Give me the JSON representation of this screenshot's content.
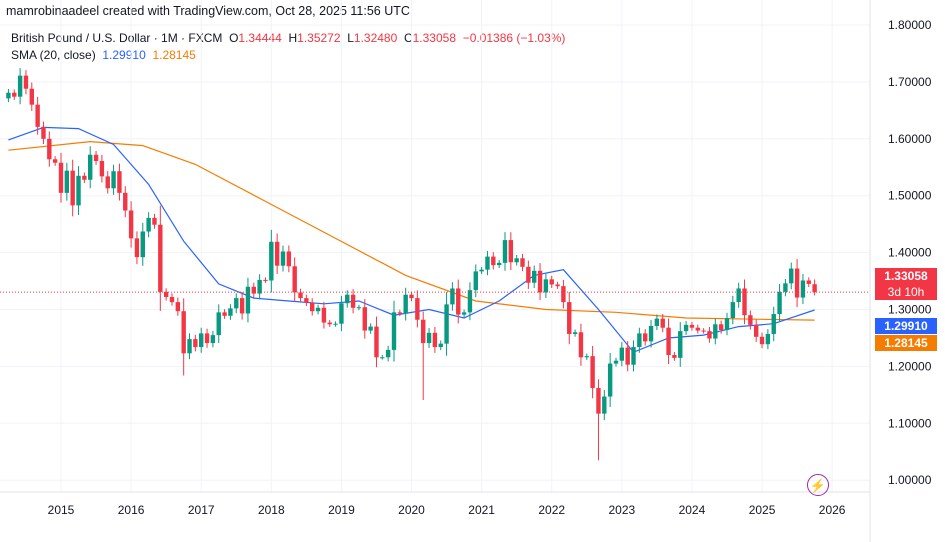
{
  "header": {
    "credit": "mamrobinaadeel created with TradingView.com, Oct 28, 2025 11:56 UTC"
  },
  "legend": {
    "symbol": "British Pound / U.S. Dollar · 1M · FXCM",
    "o_label": "O",
    "o": "1.34444",
    "h_label": "H",
    "h": "1.35272",
    "l_label": "L",
    "l": "1.32480",
    "c_label": "C",
    "c": "1.33058",
    "change": "−0.01386 (−1.03%)",
    "sma_label": "SMA (20, close)",
    "sma1": "1.29910",
    "sma2": "1.28145"
  },
  "price_tags": {
    "last": "1.33058",
    "countdown": "3d 10h",
    "sma1": "1.29910",
    "sma2": "1.28145"
  },
  "icons": {
    "tv": "tradingview-lightning-icon"
  },
  "colors": {
    "up": "#089981",
    "down": "#f23645",
    "sma1": "#2962ff",
    "sma2": "#f57c00",
    "grid": "#f0f3fa"
  },
  "chart_data": {
    "type": "candlestick",
    "interval": "1M",
    "first_month": "2014-04",
    "first_open": 1.671,
    "closes": [
      1.681,
      1.674,
      1.711,
      1.688,
      1.66,
      1.621,
      1.6,
      1.564,
      1.558,
      1.505,
      1.544,
      1.483,
      1.535,
      1.528,
      1.572,
      1.561,
      1.534,
      1.513,
      1.543,
      1.505,
      1.474,
      1.425,
      1.392,
      1.437,
      1.461,
      1.449,
      1.331,
      1.322,
      1.313,
      1.297,
      1.223,
      1.248,
      1.234,
      1.258,
      1.241,
      1.255,
      1.295,
      1.289,
      1.302,
      1.32,
      1.293,
      1.34,
      1.328,
      1.352,
      1.351,
      1.419,
      1.377,
      1.402,
      1.376,
      1.33,
      1.32,
      1.312,
      1.297,
      1.303,
      1.277,
      1.274,
      1.275,
      1.311,
      1.326,
      1.303,
      1.304,
      1.263,
      1.27,
      1.216,
      1.216,
      1.229,
      1.295,
      1.293,
      1.326,
      1.32,
      1.282,
      1.241,
      1.259,
      1.234,
      1.24,
      1.309,
      1.337,
      1.291,
      1.295,
      1.334,
      1.367,
      1.37,
      1.393,
      1.378,
      1.382,
      1.422,
      1.383,
      1.39,
      1.375,
      1.347,
      1.368,
      1.33,
      1.353,
      1.344,
      1.341,
      1.313,
      1.257,
      1.26,
      1.216,
      1.218,
      1.162,
      1.117,
      1.147,
      1.205,
      1.21,
      1.233,
      1.203,
      1.234,
      1.258,
      1.244,
      1.271,
      1.284,
      1.268,
      1.22,
      1.215,
      1.262,
      1.273,
      1.268,
      1.263,
      1.262,
      1.249,
      1.274,
      1.264,
      1.285,
      1.313,
      1.337,
      1.29,
      1.273,
      1.252,
      1.239,
      1.257,
      1.292,
      1.331,
      1.346,
      1.372,
      1.321,
      1.351,
      1.345,
      1.33058
    ],
    "wick_extremes": [
      {
        "month": "2016-10",
        "low": 1.184
      },
      {
        "month": "2020-03",
        "low": 1.141
      },
      {
        "month": "2022-09",
        "low": 1.035
      },
      {
        "month": "2025-10",
        "open": 1.34444,
        "high": 1.35272,
        "low": 1.3248
      }
    ],
    "sma1_line": [
      [
        "2014-04",
        1.598
      ],
      [
        "2014-10",
        1.62
      ],
      [
        "2015-04",
        1.618
      ],
      [
        "2015-10",
        1.59
      ],
      [
        "2016-04",
        1.52
      ],
      [
        "2016-10",
        1.42
      ],
      [
        "2017-04",
        1.345
      ],
      [
        "2017-10",
        1.32
      ],
      [
        "2018-04",
        1.315
      ],
      [
        "2018-10",
        1.31
      ],
      [
        "2019-04",
        1.315
      ],
      [
        "2019-10",
        1.29
      ],
      [
        "2020-04",
        1.3
      ],
      [
        "2020-10",
        1.285
      ],
      [
        "2021-04",
        1.315
      ],
      [
        "2021-10",
        1.36
      ],
      [
        "2022-03",
        1.37
      ],
      [
        "2022-09",
        1.3
      ],
      [
        "2023-03",
        1.225
      ],
      [
        "2023-09",
        1.25
      ],
      [
        "2024-03",
        1.255
      ],
      [
        "2024-09",
        1.27
      ],
      [
        "2025-03",
        1.275
      ],
      [
        "2025-10",
        1.2991
      ]
    ],
    "sma2_line": [
      [
        "2014-04",
        1.58
      ],
      [
        "2015-06",
        1.595
      ],
      [
        "2016-03",
        1.588
      ],
      [
        "2016-12",
        1.555
      ],
      [
        "2017-12",
        1.49
      ],
      [
        "2018-12",
        1.425
      ],
      [
        "2019-12",
        1.36
      ],
      [
        "2020-12",
        1.315
      ],
      [
        "2021-12",
        1.3
      ],
      [
        "2022-12",
        1.295
      ],
      [
        "2023-12",
        1.285
      ],
      [
        "2024-12",
        1.283
      ],
      [
        "2025-10",
        1.28145
      ]
    ],
    "x_ticks": [
      "2015",
      "2016",
      "2017",
      "2018",
      "2019",
      "2020",
      "2021",
      "2022",
      "2023",
      "2024",
      "2025",
      "2026"
    ],
    "y_ticks": [
      "1.80000",
      "1.70000",
      "1.60000",
      "1.50000",
      "1.40000",
      "1.30000",
      "1.20000",
      "1.10000",
      "1.00000"
    ],
    "ylim": [
      0.995,
      1.805
    ],
    "last_price_line": 1.33058,
    "grid": true
  }
}
